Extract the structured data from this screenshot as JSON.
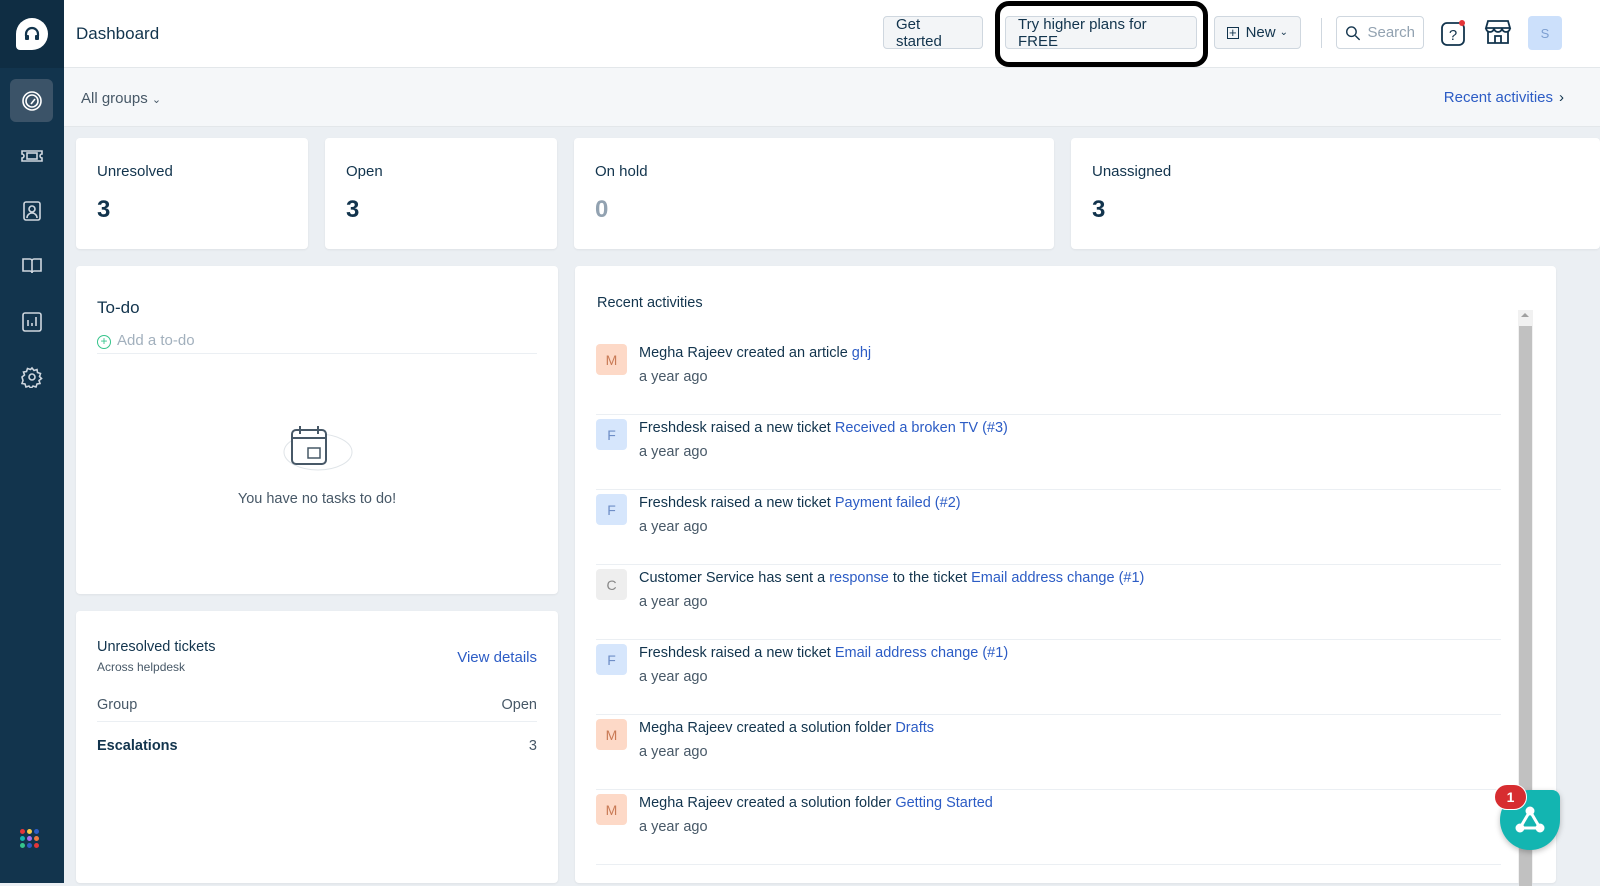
{
  "header": {
    "title": "Dashboard",
    "get_started": "Get started",
    "try_plans": "Try higher plans for FREE",
    "new_label": "New",
    "search_placeholder": "Search",
    "avatar": "S"
  },
  "subheader": {
    "groups": "All groups",
    "recent_link": "Recent activities"
  },
  "sidebar": {
    "items": [
      "dashboard",
      "tickets",
      "contacts",
      "solutions",
      "reports",
      "admin"
    ]
  },
  "stats": [
    {
      "label": "Unresolved",
      "value": "3"
    },
    {
      "label": "Open",
      "value": "3"
    },
    {
      "label": "On hold",
      "value": "0"
    },
    {
      "label": "Unassigned",
      "value": "3"
    }
  ],
  "todo": {
    "title": "To-do",
    "add": "Add a to-do",
    "empty": "You have no tasks to do!"
  },
  "unresolved": {
    "title": "Unresolved tickets",
    "subtitle": "Across helpdesk",
    "view": "View details",
    "col_group": "Group",
    "col_open": "Open",
    "rows": [
      {
        "group": "Escalations",
        "open": "3"
      }
    ]
  },
  "activities": {
    "title": "Recent activities",
    "items": [
      {
        "initial": "M",
        "actor": "Megha Rajeev",
        "text": " created an article ",
        "link": "ghj",
        "time": "a year ago",
        "color": "#fdd9c7",
        "fg": "#c97a55"
      },
      {
        "initial": "F",
        "actor": "Freshdesk",
        "text": " raised a new ticket ",
        "link": "Received a broken TV (#3)",
        "time": "a year ago",
        "color": "#d6e6fc",
        "fg": "#6f8fc7"
      },
      {
        "initial": "F",
        "actor": "Freshdesk",
        "text": " raised a new ticket ",
        "link": "Payment failed (#2)",
        "time": "a year ago",
        "color": "#d6e6fc",
        "fg": "#6f8fc7"
      },
      {
        "initial": "C",
        "actor": "Customer Service",
        "text": " has sent a ",
        "link": "response",
        "text2": " to the ticket ",
        "link2": "Email address change (#1)",
        "time": "a year ago",
        "color": "#eeeeee",
        "fg": "#888888"
      },
      {
        "initial": "F",
        "actor": "Freshdesk",
        "text": " raised a new ticket ",
        "link": "Email address change (#1)",
        "time": "a year ago",
        "color": "#d6e6fc",
        "fg": "#6f8fc7"
      },
      {
        "initial": "M",
        "actor": "Megha Rajeev",
        "text": " created a solution folder ",
        "link": "Drafts",
        "time": "a year ago",
        "color": "#fdd9c7",
        "fg": "#c97a55"
      },
      {
        "initial": "M",
        "actor": "Megha Rajeev",
        "text": " created a solution folder ",
        "link": "Getting Started",
        "time": "a year ago",
        "color": "#fdd9c7",
        "fg": "#c97a55"
      }
    ]
  },
  "widget": {
    "badge": "1",
    "color": "#13b5b1"
  }
}
